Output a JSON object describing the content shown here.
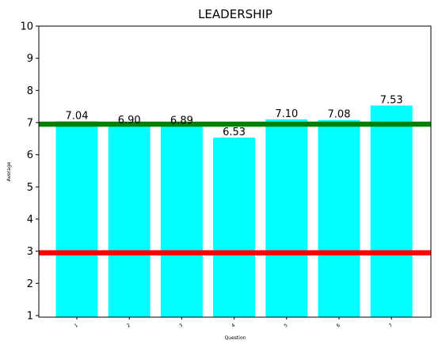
{
  "chart_data": {
    "type": "bar",
    "title": "LEADERSHIP",
    "xlabel": "Question",
    "ylabel": "Average",
    "categories": [
      "1",
      "2",
      "3",
      "4",
      "5",
      "6",
      "7"
    ],
    "values": [
      7.04,
      6.9,
      6.89,
      6.53,
      7.1,
      7.08,
      7.53
    ],
    "value_labels": [
      "7.04",
      "6.90",
      "6.89",
      "6.53",
      "7.10",
      "7.08",
      "7.53"
    ],
    "bar_color": "#00ffff",
    "ylim": [
      0.95,
      10
    ],
    "yticks": [
      "1",
      "2",
      "3",
      "4",
      "5",
      "6",
      "7",
      "8",
      "9",
      "10"
    ],
    "reference_lines": [
      {
        "y": 6.95,
        "color": "#008000"
      },
      {
        "y": 2.95,
        "color": "#ff0000"
      }
    ],
    "grid": false,
    "legend": "none"
  }
}
